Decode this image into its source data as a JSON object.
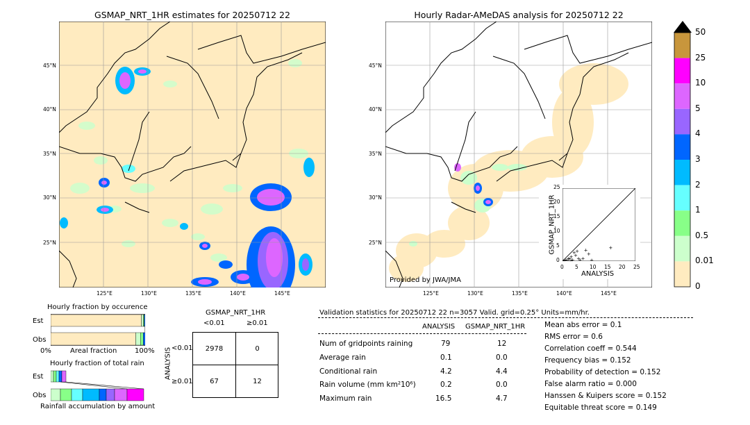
{
  "left_map": {
    "title": "GSMAP_NRT_1HR estimates for 20250712 22",
    "lat_labels": [
      "45°N",
      "40°N",
      "35°N",
      "30°N",
      "25°N"
    ],
    "lon_labels": [
      "125°E",
      "130°E",
      "135°E",
      "140°E",
      "145°E"
    ]
  },
  "right_map": {
    "title": "Hourly Radar-AMeDAS analysis for 20250712 22",
    "lat_labels": [
      "45°N",
      "40°N",
      "35°N",
      "30°N",
      "25°N"
    ],
    "lon_labels": [
      "125°E",
      "130°E",
      "135°E",
      "140°E",
      "145°E"
    ],
    "credit": "Provided by JWA/JMA"
  },
  "colorbar": {
    "labels": [
      "50",
      "25",
      "10",
      "5",
      "4",
      "3",
      "2",
      "1",
      "0.5",
      "0.01",
      "0"
    ],
    "colors": [
      "#c8963c",
      "#ff00ff",
      "#dd66ff",
      "#9966ff",
      "#0066ff",
      "#00bbff",
      "#66ffff",
      "#88ff88",
      "#ccffcc",
      "#ffebc0"
    ]
  },
  "occurrence": {
    "title": "Hourly fraction by occurence",
    "est_label": "Est",
    "obs_label": "Obs",
    "xlabel_left": "0%",
    "xlabel_mid": "Areal fraction",
    "xlabel_right": "100%"
  },
  "total_rain": {
    "title": "Hourly fraction of total rain",
    "est_label": "Est",
    "obs_label": "Obs",
    "xlabel": "Rainfall accumulation by amount"
  },
  "contingency": {
    "title": "GSMAP_NRT_1HR",
    "col1": "<0.01",
    "col2": "≥0.01",
    "row_axis": "ANALYSIS",
    "row1": "<0.01",
    "row2": "≥0.01",
    "cells": [
      "2978",
      "0",
      "67",
      "12"
    ]
  },
  "validation": {
    "header": "Validation statistics for 20250712 22  n=3057 Valid. grid=0.25° Units=mm/hr.",
    "col_analysis": "ANALYSIS",
    "col_gsmap": "GSMAP_NRT_1HR",
    "rows": [
      {
        "label": "Num of gridpoints raining",
        "a": "79",
        "g": "12"
      },
      {
        "label": "Average rain",
        "a": "0.1",
        "g": "0.0"
      },
      {
        "label": "Conditional rain",
        "a": "4.2",
        "g": "4.4"
      },
      {
        "label": "Rain volume (mm km²10⁶)",
        "a": "0.2",
        "g": "0.0"
      },
      {
        "label": "Maximum rain",
        "a": "16.5",
        "g": "4.7"
      }
    ],
    "scores": [
      "Mean abs error =    0.1",
      "RMS error =    0.6",
      "Correlation coeff =  0.544",
      "Frequency bias =  0.152",
      "Probability of detection =  0.152",
      "False alarm ratio =  0.000",
      "Hanssen & Kuipers score =  0.152",
      "Equitable threat score =  0.149"
    ]
  },
  "chart_data": [
    {
      "type": "scatter",
      "xlabel": "ANALYSIS",
      "ylabel": "GSMAP_NRT_1HR",
      "xlim": [
        0,
        25
      ],
      "ylim": [
        0,
        25
      ],
      "xticks": [
        "0",
        "5",
        "10",
        "15",
        "20",
        "25"
      ],
      "yticks": [
        "0",
        "5",
        "10",
        "15",
        "20",
        "25"
      ],
      "points": [
        {
          "x": 0.5,
          "y": 0.2
        },
        {
          "x": 1,
          "y": 0.5
        },
        {
          "x": 1.5,
          "y": 0.3
        },
        {
          "x": 2,
          "y": 1
        },
        {
          "x": 2.5,
          "y": 0.8
        },
        {
          "x": 3,
          "y": 1.5
        },
        {
          "x": 3.5,
          "y": 0.5
        },
        {
          "x": 4,
          "y": 3
        },
        {
          "x": 4.5,
          "y": 2
        },
        {
          "x": 5,
          "y": 3.5
        },
        {
          "x": 5.5,
          "y": 1
        },
        {
          "x": 6,
          "y": 0.5
        },
        {
          "x": 7,
          "y": 1
        },
        {
          "x": 8,
          "y": 3.8
        },
        {
          "x": 9,
          "y": 2.5
        },
        {
          "x": 10,
          "y": 0.3
        },
        {
          "x": 16.5,
          "y": 4.7
        },
        {
          "x": 3,
          "y": 0.2
        },
        {
          "x": 2,
          "y": 0.1
        },
        {
          "x": 1,
          "y": 0.1
        }
      ]
    },
    {
      "type": "bar",
      "title": "Hourly fraction by occurence",
      "series": [
        {
          "name": "Est",
          "values": [
            0.96,
            0.02,
            0.01,
            0.01
          ]
        },
        {
          "name": "Obs",
          "values": [
            0.9,
            0.05,
            0.03,
            0.02
          ]
        }
      ]
    }
  ]
}
